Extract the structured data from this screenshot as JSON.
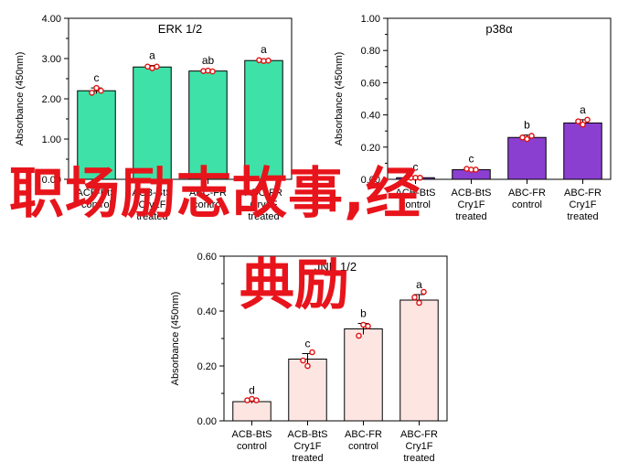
{
  "overlay": {
    "line1": "职场励志故事,经",
    "line2": "典励"
  },
  "chart_data": [
    {
      "type": "bar",
      "title": "ERK 1/2",
      "ylabel": "Absorbance (450nm)",
      "ylim": [
        0,
        4.0
      ],
      "yticks": [
        "0.00",
        "1.00",
        "2.00",
        "3.00",
        "4.00"
      ],
      "categories": [
        [
          "ACB-BtS",
          "control"
        ],
        [
          "ACB-BtS",
          "Cry1F",
          "treated"
        ],
        [
          "ABC-FR",
          "control"
        ],
        [
          "ABC-FR",
          "Cry1F",
          "treated"
        ]
      ],
      "values": [
        2.2,
        2.79,
        2.69,
        2.95
      ],
      "errors": [
        0.07,
        0.04,
        0.02,
        0.03
      ],
      "letters": [
        "c",
        "a",
        "ab",
        "a"
      ],
      "points": [
        [
          2.15,
          2.27,
          2.2
        ],
        [
          2.8,
          2.76,
          2.8
        ],
        [
          2.69,
          2.7,
          2.68
        ],
        [
          2.96,
          2.94,
          2.95
        ]
      ],
      "bar_color": "#3ee2a8",
      "grid": false
    },
    {
      "type": "bar",
      "title": "p38α",
      "ylabel": "Absorbance (450nm)",
      "ylim": [
        0,
        1.0
      ],
      "yticks": [
        "0.00",
        "0.20",
        "0.40",
        "0.60",
        "0.80",
        "1.00"
      ],
      "categories": [
        [
          "ACB-BtS",
          "control"
        ],
        [
          "ACB-BtS",
          "Cry1F",
          "treated"
        ],
        [
          "ABC-FR",
          "control"
        ],
        [
          "ABC-FR",
          "Cry1F",
          "treated"
        ]
      ],
      "values": [
        0.01,
        0.06,
        0.26,
        0.35
      ],
      "errors": [
        0.005,
        0.005,
        0.015,
        0.02
      ],
      "letters": [
        "c",
        "c",
        "b",
        "a"
      ],
      "points": [
        [
          0.01,
          0.01,
          0.01
        ],
        [
          0.065,
          0.06,
          0.06
        ],
        [
          0.26,
          0.25,
          0.27
        ],
        [
          0.36,
          0.34,
          0.37
        ]
      ],
      "bar_color": "#8b3fd0",
      "grid": false
    },
    {
      "type": "bar",
      "title": "JNK 1/2",
      "ylabel": "Absorbance (450nm)",
      "ylim": [
        0,
        0.6
      ],
      "yticks": [
        "0.00",
        "0.20",
        "0.40",
        "0.60"
      ],
      "categories": [
        [
          "ACB-BtS",
          "control"
        ],
        [
          "ACB-BtS",
          "Cry1F",
          "treated"
        ],
        [
          "ABC-FR",
          "control"
        ],
        [
          "ABC-FR",
          "Cry1F",
          "treated"
        ]
      ],
      "values": [
        0.07,
        0.225,
        0.335,
        0.44
      ],
      "errors": [
        0.005,
        0.02,
        0.02,
        0.02
      ],
      "letters": [
        "d",
        "c",
        "b",
        "a"
      ],
      "points": [
        [
          0.075,
          0.08,
          0.075
        ],
        [
          0.22,
          0.2,
          0.25
        ],
        [
          0.31,
          0.35,
          0.345
        ],
        [
          0.45,
          0.43,
          0.47
        ]
      ],
      "bar_color": "#fde5e2",
      "grid": false
    }
  ]
}
